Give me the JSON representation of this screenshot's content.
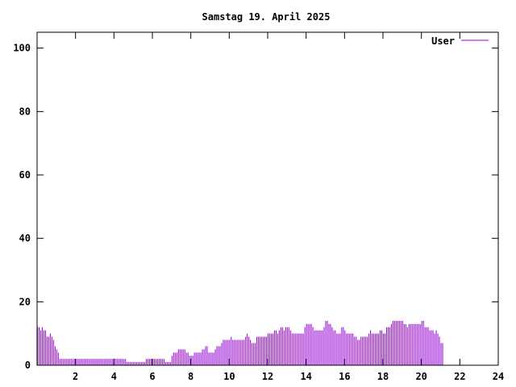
{
  "chart_data": {
    "type": "bar",
    "title": "Samstag 19. April 2025",
    "xlabel": "",
    "ylabel": "",
    "xlim": [
      0,
      24
    ],
    "ylim": [
      0,
      105
    ],
    "x_ticks": [
      2,
      4,
      6,
      8,
      10,
      12,
      14,
      16,
      18,
      20,
      22,
      24
    ],
    "x_tick_labels": [
      "2",
      "4",
      "6",
      "8",
      "10",
      "12",
      "14",
      "16",
      "18",
      "20",
      "22",
      "24"
    ],
    "y_ticks": [
      0,
      20,
      40,
      60,
      80,
      100
    ],
    "y_tick_labels": [
      "0",
      "20",
      "40",
      "60",
      "80",
      "100"
    ],
    "grid": false,
    "legend_position": "top-right",
    "bar_interval_minutes": 5,
    "series": [
      {
        "name": "User",
        "color": "#9400d3",
        "values": [
          12,
          12,
          11,
          12,
          11,
          11,
          9,
          9,
          10,
          9,
          8,
          6,
          5,
          4,
          2,
          2,
          2,
          2,
          2,
          2,
          2,
          2,
          2,
          2,
          2,
          2,
          2,
          2,
          2,
          2,
          2,
          2,
          2,
          2,
          2,
          2,
          2,
          2,
          2,
          2,
          2,
          2,
          2,
          2,
          2,
          2,
          2,
          2,
          2,
          2,
          2,
          2,
          2,
          2,
          2,
          2,
          1,
          1,
          1,
          1,
          1,
          1,
          1,
          1,
          1,
          1,
          1,
          1,
          2,
          2,
          2,
          2,
          2,
          2,
          2,
          2,
          2,
          2,
          2,
          2,
          1,
          1,
          1,
          1,
          3,
          4,
          4,
          4,
          5,
          5,
          5,
          5,
          5,
          4,
          4,
          3,
          3,
          3,
          4,
          4,
          4,
          4,
          4,
          5,
          5,
          6,
          6,
          4,
          4,
          4,
          4,
          5,
          6,
          6,
          6,
          7,
          8,
          8,
          8,
          8,
          8,
          9,
          8,
          8,
          8,
          8,
          8,
          8,
          8,
          8,
          9,
          10,
          9,
          8,
          7,
          7,
          7,
          9,
          9,
          9,
          9,
          9,
          9,
          9,
          10,
          10,
          10,
          10,
          11,
          11,
          10,
          11,
          12,
          12,
          11,
          12,
          12,
          12,
          11,
          10,
          10,
          10,
          10,
          10,
          10,
          10,
          10,
          12,
          13,
          13,
          13,
          13,
          12,
          11,
          11,
          11,
          11,
          11,
          11,
          12,
          14,
          14,
          13,
          13,
          12,
          11,
          11,
          10,
          10,
          10,
          12,
          12,
          11,
          10,
          10,
          10,
          10,
          10,
          9,
          9,
          8,
          8,
          9,
          9,
          9,
          9,
          9,
          10,
          11,
          10,
          10,
          10,
          10,
          10,
          11,
          11,
          10,
          10,
          12,
          12,
          12,
          13,
          14,
          14,
          14,
          14,
          14,
          14,
          14,
          13,
          13,
          12,
          13,
          13,
          13,
          13,
          13,
          13,
          13,
          13,
          14,
          14,
          12,
          12,
          12,
          11,
          11,
          11,
          10,
          11,
          10,
          9,
          7,
          7
        ]
      }
    ]
  }
}
